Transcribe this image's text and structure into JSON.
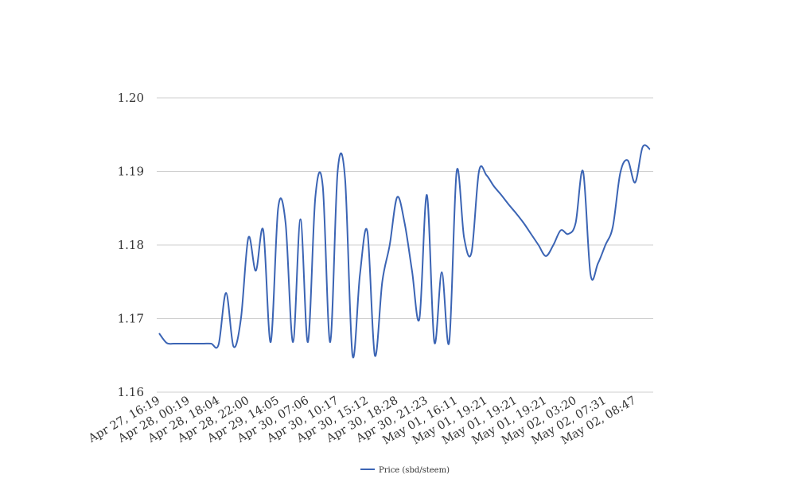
{
  "chart_data": {
    "type": "line",
    "categories": [
      "Apr 27, 16:19",
      null,
      null,
      null,
      "Apr 28, 00:19",
      null,
      null,
      null,
      "Apr 28, 18:04",
      null,
      null,
      null,
      "Apr 28, 22:00",
      null,
      null,
      null,
      "Apr 29, 14:05",
      null,
      null,
      null,
      "Apr 30, 07:06",
      null,
      null,
      null,
      "Apr 30, 10:17",
      null,
      null,
      null,
      "Apr 30, 15:12",
      null,
      null,
      null,
      "Apr 30, 18:28",
      null,
      null,
      null,
      "Apr 30, 21:23",
      null,
      null,
      null,
      "May 01, 16:11",
      null,
      null,
      null,
      "May 01, 19:21",
      null,
      null,
      null,
      "May 01, 19:21",
      null,
      null,
      null,
      "May 01, 19:21",
      null,
      null,
      null,
      "May 02, 03:20",
      null,
      null,
      null,
      "May 02, 07:31",
      null,
      null,
      null,
      "May 02, 08:47",
      null,
      null
    ],
    "series": [
      {
        "name": "Price (sbd/steem)",
        "color": "#3b64b4",
        "values": [
          1.168,
          1.1667,
          1.1666,
          1.1666,
          1.1666,
          1.1666,
          1.1666,
          1.1666,
          1.1665,
          1.1735,
          1.1662,
          1.17,
          1.181,
          1.1765,
          1.182,
          1.1668,
          1.185,
          1.183,
          1.1668,
          1.1835,
          1.1668,
          1.1865,
          1.188,
          1.1668,
          1.19,
          1.189,
          1.165,
          1.176,
          1.1818,
          1.165,
          1.175,
          1.18,
          1.1865,
          1.183,
          1.1765,
          1.17,
          1.1868,
          1.1668,
          1.1763,
          1.1668,
          1.19,
          1.181,
          1.179,
          1.19,
          1.1895,
          1.188,
          1.1868,
          1.1855,
          1.1843,
          1.183,
          1.1815,
          1.18,
          1.1785,
          1.18,
          1.182,
          1.1815,
          1.183,
          1.19,
          1.176,
          1.1775,
          1.18,
          1.1825,
          1.1898,
          1.1915,
          1.1885,
          1.1933,
          1.193
        ]
      }
    ],
    "ylim": [
      1.16,
      1.2
    ],
    "yticks": [
      1.16,
      1.17,
      1.18,
      1.19,
      {
        "value": 1.2,
        "label": "1.20"
      }
    ],
    "grid": true,
    "legend": "bottom"
  }
}
